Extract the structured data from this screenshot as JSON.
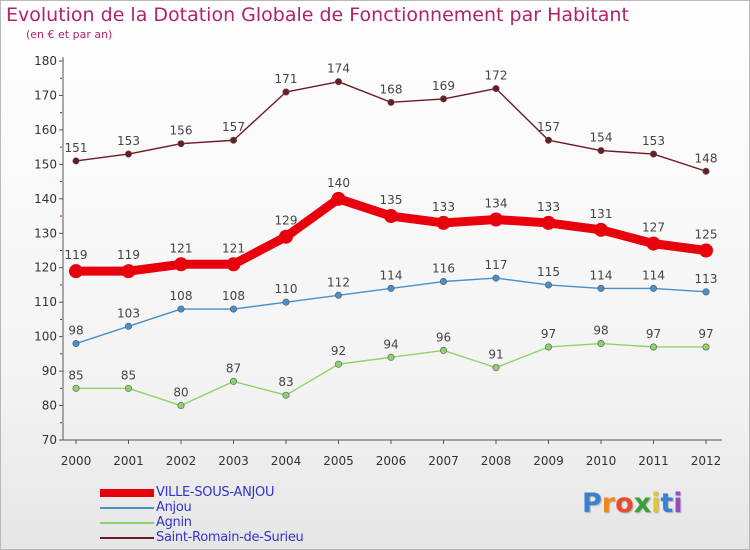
{
  "title": "Evolution de la Dotation Globale de Fonctionnement par Habitant",
  "subtitle": "(en € et par an)",
  "logo": {
    "letters": [
      "P",
      "r",
      "o",
      "x",
      "i",
      "t",
      "i"
    ],
    "colors": [
      "#3a7fd0",
      "#f08a1c",
      "#e84a2c",
      "#3aa03a",
      "#e8c22a",
      "#3a7fd0",
      "#9a4ac0"
    ]
  },
  "chart_data": {
    "type": "line",
    "x": [
      2000,
      2001,
      2002,
      2003,
      2004,
      2005,
      2006,
      2007,
      2008,
      2009,
      2010,
      2011,
      2012
    ],
    "ylim": [
      70,
      180
    ],
    "yticks": [
      70,
      80,
      90,
      100,
      110,
      120,
      130,
      140,
      150,
      160,
      170,
      180
    ],
    "grid": false,
    "legend_position": "bottom-left",
    "series": [
      {
        "name": "VILLE-SOUS-ANJOU",
        "color": "#e8000d",
        "values": [
          119,
          119,
          121,
          121,
          129,
          140,
          135,
          133,
          134,
          133,
          131,
          127,
          125
        ]
      },
      {
        "name": "Anjou",
        "color": "#4a90c8",
        "values": [
          98,
          103,
          108,
          108,
          110,
          112,
          114,
          116,
          117,
          115,
          114,
          114,
          113
        ]
      },
      {
        "name": "Agnin",
        "color": "#8ed36a",
        "values": [
          85,
          85,
          80,
          87,
          83,
          92,
          94,
          96,
          91,
          97,
          98,
          97,
          97
        ]
      },
      {
        "name": "Saint-Romain-de-Surieu",
        "color": "#6b1c22",
        "values": [
          151,
          153,
          156,
          157,
          171,
          174,
          168,
          169,
          172,
          157,
          154,
          153,
          148
        ]
      }
    ]
  }
}
